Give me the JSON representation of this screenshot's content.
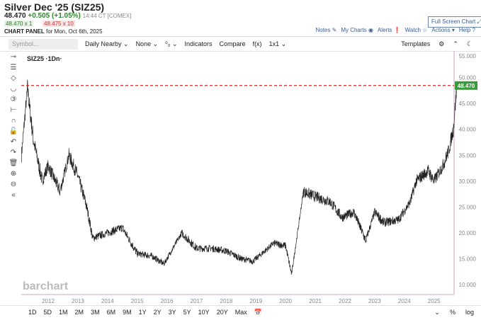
{
  "header": {
    "title": "Silver Dec '25 (SIZ25)",
    "last": "48.470",
    "change": "+0.505 (+1.05%)",
    "time": "14:44 CT [COMEX]",
    "bid": "48.470 x 1",
    "ask": "48.475 x 10",
    "panel_label": "CHART PANEL",
    "panel_date": "for Mon, Oct 6th, 2025",
    "fullscreen": "Full Screen Chart ⤢"
  },
  "links": [
    "Notes ✎",
    "My Charts ◉",
    "Alerts ❗",
    "Watch ☆",
    "Actions ▾",
    "Help ?"
  ],
  "toolbar": {
    "symbol_placeholder": "Symbol...",
    "items": [
      "Daily Nearby ⌄",
      "None ⌄",
      "⁰₀ ⌄",
      "Indicators",
      "Compare",
      "f(x)",
      "1x1 ⌄"
    ],
    "templates": "Templates",
    "icons": [
      "⚙",
      "⌃",
      "☾"
    ]
  },
  "sidebar_icons": [
    "⊸",
    "☰",
    "◇",
    "◡",
    "③",
    "⊢",
    "∩",
    "🔓",
    "↶",
    "↷",
    "🗑",
    "⊕",
    "⊖",
    "«"
  ],
  "legend": "SIZ25 ·1Dn·",
  "brand": "barchart",
  "colors": {
    "line": "#222",
    "price_line": "#d22",
    "price_tag": "#3a9a3a",
    "axis": "#c9a3c9"
  },
  "bottom": {
    "ranges": [
      "1D",
      "5D",
      "1M",
      "2M",
      "3M",
      "6M",
      "9M",
      "1Y",
      "2Y",
      "3Y",
      "5Y",
      "10Y",
      "20Y",
      "Max"
    ],
    "calendar": "📅",
    "right": [
      "⌄",
      "%",
      "log"
    ]
  },
  "chart_data": {
    "type": "line",
    "title": "Silver Dec '25 (SIZ25)",
    "x": [
      2011.1,
      2011.3,
      2011.5,
      2011.8,
      2012.0,
      2012.4,
      2012.7,
      2013.0,
      2013.3,
      2013.5,
      2014.0,
      2014.5,
      2015.0,
      2015.5,
      2015.9,
      2016.5,
      2017.0,
      2017.5,
      2018.0,
      2018.5,
      2018.9,
      2019.6,
      2020.0,
      2020.2,
      2020.6,
      2021.0,
      2021.5,
      2021.9,
      2022.3,
      2022.7,
      2023.0,
      2023.3,
      2023.8,
      2024.2,
      2024.4,
      2024.8,
      2025.0,
      2025.3,
      2025.5,
      2025.65,
      2025.77
    ],
    "y": [
      35,
      48,
      38,
      30,
      33,
      28,
      35,
      31,
      25,
      19,
      20,
      21,
      16,
      15.5,
      14,
      20,
      17,
      17,
      16.5,
      15,
      14.5,
      18,
      17.5,
      12,
      28,
      27,
      26,
      23,
      24,
      18.5,
      24,
      22,
      22.5,
      26,
      30,
      32,
      30,
      33,
      36,
      40,
      48.47
    ],
    "yticks": [
      "10.000",
      "15.000",
      "20.000",
      "25.000",
      "30.000",
      "35.000",
      "40.000",
      "45.000",
      "50.000",
      "55.000"
    ],
    "ylim": [
      10,
      55
    ],
    "xticks": [
      "2012",
      "2013",
      "2014",
      "2015",
      "2016",
      "2017",
      "2018",
      "2019",
      "2020",
      "2021",
      "2022",
      "2023",
      "2024",
      "2025"
    ],
    "last_price": "48.470"
  }
}
